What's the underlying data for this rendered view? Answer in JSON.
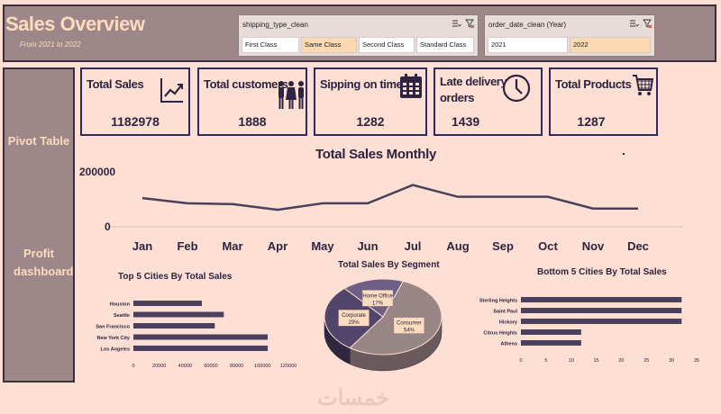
{
  "header": {
    "title": "Sales Overview",
    "subtitle": "From 2021 to 2022"
  },
  "slicers": {
    "shipping": {
      "title": "shipping_type_clean",
      "options": [
        "First Class",
        "Same Class",
        "Second Class",
        "Standard Class"
      ],
      "selected": "Same Class"
    },
    "year": {
      "title": "order_date_clean (Year)",
      "options": [
        "2021",
        "2022"
      ],
      "selected": "2022"
    }
  },
  "sidebar": {
    "items": [
      {
        "label": "Pivot Table"
      },
      {
        "label": "Profit dashboard"
      }
    ]
  },
  "kpis": [
    {
      "label": "Total Sales",
      "value": "1182978",
      "icon": "chart-up-icon"
    },
    {
      "label": "Total customers",
      "value": "1888",
      "icon": "people-icon"
    },
    {
      "label": "Sipping on time",
      "value": "1282",
      "icon": "calendar-icon"
    },
    {
      "label": "Late delivery orders",
      "value": "1439",
      "icon": "clock-icon"
    },
    {
      "label": "Total Products",
      "value": "1287",
      "icon": "cart-icon"
    }
  ],
  "colors": {
    "background": "#fde0d3",
    "panel": "#9e8789",
    "accent_text": "#fddbbf",
    "series": "#4a3f5c"
  },
  "chart_data": [
    {
      "type": "line",
      "title": "Total Sales Monthly",
      "categories": [
        "Jan",
        "Feb",
        "Mar",
        "Apr",
        "May",
        "Jun",
        "Jul",
        "Aug",
        "Sep",
        "Oct",
        "Nov",
        "Dec"
      ],
      "values": [
        110000,
        90000,
        87000,
        65000,
        90000,
        90000,
        160000,
        115000,
        115000,
        115000,
        70000,
        70000
      ],
      "y_ticks": [
        "0",
        "200000"
      ],
      "ylim": [
        0,
        200000
      ],
      "grid": false
    },
    {
      "type": "bar",
      "title": "Top 5 Cities By Total Sales",
      "categories": [
        "Houston",
        "Seattle",
        "San Francisco",
        "New York City",
        "Los Angeles"
      ],
      "values": [
        53000,
        70000,
        63000,
        104000,
        104000
      ],
      "x_ticks": [
        "0",
        "20000",
        "40000",
        "60000",
        "80000",
        "100000",
        "120000"
      ],
      "xlim": [
        0,
        120000
      ]
    },
    {
      "type": "pie",
      "title": "Total Sales By Segment",
      "slices": [
        {
          "name": "Consumer",
          "value": 54,
          "label": "54%"
        },
        {
          "name": "Corporate",
          "value": 29,
          "label": "29%"
        },
        {
          "name": "Home Office",
          "value": 17,
          "label": "17%"
        }
      ]
    },
    {
      "type": "bar",
      "title": "Bottom 5 Cities By Total Sales",
      "categories": [
        "Sterling Heights",
        "Saint Paul",
        "Hickory",
        "Citrus Heights",
        "Athens"
      ],
      "values": [
        32,
        32,
        32,
        12,
        12
      ],
      "x_ticks": [
        "0",
        "5",
        "10",
        "15",
        "20",
        "25",
        "30",
        "35"
      ],
      "xlim": [
        0,
        35
      ]
    }
  ],
  "watermark": "خمسات"
}
